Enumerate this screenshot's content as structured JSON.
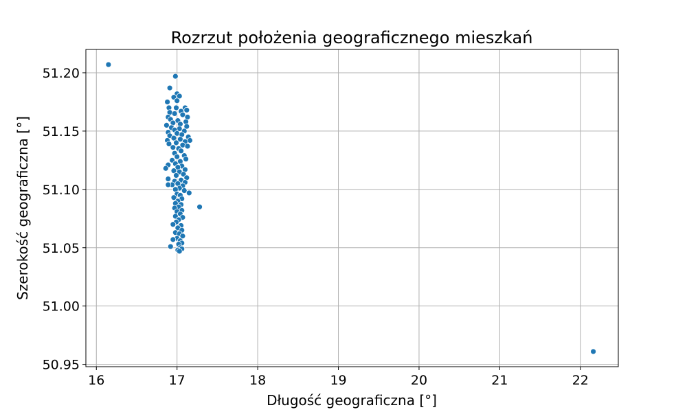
{
  "chart_data": {
    "type": "scatter",
    "title": "Rozrzut położenia geograficznego mieszkań",
    "xlabel": "Długość geograficzna [°]",
    "ylabel": "Szerokość geograficzna [°]",
    "xlim": [
      15.87,
      22.47
    ],
    "ylim": [
      50.948,
      51.22
    ],
    "x_ticks": [
      16,
      17,
      18,
      19,
      20,
      21,
      22
    ],
    "x_tick_labels": [
      "16",
      "17",
      "18",
      "19",
      "20",
      "21",
      "22"
    ],
    "y_ticks": [
      50.95,
      51.0,
      51.05,
      51.1,
      51.15,
      51.2
    ],
    "y_tick_labels": [
      "50.95",
      "51.00",
      "51.05",
      "51.10",
      "51.15",
      "51.20"
    ],
    "grid": true,
    "marker_color": "#1f77b4",
    "points": [
      [
        16.15,
        51.207
      ],
      [
        22.16,
        50.961
      ],
      [
        17.28,
        51.085
      ],
      [
        16.98,
        51.197
      ],
      [
        16.91,
        51.187
      ],
      [
        17.0,
        51.182
      ],
      [
        17.03,
        51.18
      ],
      [
        16.96,
        51.179
      ],
      [
        17.0,
        51.176
      ],
      [
        16.88,
        51.175
      ],
      [
        16.9,
        51.17
      ],
      [
        16.99,
        51.17
      ],
      [
        17.1,
        51.17
      ],
      [
        17.12,
        51.168
      ],
      [
        17.05,
        51.167
      ],
      [
        16.91,
        51.166
      ],
      [
        16.97,
        51.165
      ],
      [
        17.07,
        51.164
      ],
      [
        16.89,
        51.162
      ],
      [
        17.13,
        51.162
      ],
      [
        16.92,
        51.16
      ],
      [
        17.01,
        51.159
      ],
      [
        17.11,
        51.158
      ],
      [
        16.95,
        51.157
      ],
      [
        17.04,
        51.156
      ],
      [
        16.87,
        51.155
      ],
      [
        17.12,
        51.154
      ],
      [
        16.93,
        51.153
      ],
      [
        17.03,
        51.152
      ],
      [
        16.97,
        51.151
      ],
      [
        17.09,
        51.15
      ],
      [
        16.89,
        51.149
      ],
      [
        17.0,
        51.148
      ],
      [
        17.06,
        51.147
      ],
      [
        16.91,
        51.146
      ],
      [
        17.14,
        51.145
      ],
      [
        16.96,
        51.144
      ],
      [
        17.04,
        51.143
      ],
      [
        17.16,
        51.142
      ],
      [
        16.88,
        51.142
      ],
      [
        17.1,
        51.141
      ],
      [
        16.99,
        51.14
      ],
      [
        16.9,
        51.139
      ],
      [
        17.07,
        51.138
      ],
      [
        17.13,
        51.137
      ],
      [
        16.95,
        51.136
      ],
      [
        17.02,
        51.135
      ],
      [
        17.05,
        51.133
      ],
      [
        16.97,
        51.131
      ],
      [
        17.09,
        51.129
      ],
      [
        17.0,
        51.128
      ],
      [
        17.11,
        51.126
      ],
      [
        16.94,
        51.125
      ],
      [
        17.04,
        51.124
      ],
      [
        16.98,
        51.122
      ],
      [
        16.89,
        51.121
      ],
      [
        17.06,
        51.12
      ],
      [
        17.01,
        51.119
      ],
      [
        16.86,
        51.118
      ],
      [
        17.1,
        51.117
      ],
      [
        16.96,
        51.116
      ],
      [
        17.03,
        51.115
      ],
      [
        17.08,
        51.113
      ],
      [
        16.99,
        51.112
      ],
      [
        17.12,
        51.11
      ],
      [
        16.89,
        51.109
      ],
      [
        17.05,
        51.108
      ],
      [
        16.97,
        51.107
      ],
      [
        17.1,
        51.106
      ],
      [
        17.01,
        51.105
      ],
      [
        16.94,
        51.104
      ],
      [
        16.89,
        51.104
      ],
      [
        17.07,
        51.103
      ],
      [
        17.03,
        51.101
      ],
      [
        16.98,
        51.1
      ],
      [
        17.09,
        51.099
      ],
      [
        17.15,
        51.097
      ],
      [
        17.0,
        51.096
      ],
      [
        17.04,
        51.095
      ],
      [
        16.96,
        51.093
      ],
      [
        17.06,
        51.092
      ],
      [
        17.01,
        51.09
      ],
      [
        16.98,
        51.088
      ],
      [
        17.05,
        51.087
      ],
      [
        17.02,
        51.085
      ],
      [
        16.97,
        51.084
      ],
      [
        17.06,
        51.082
      ],
      [
        17.0,
        51.081
      ],
      [
        17.04,
        51.079
      ],
      [
        16.98,
        51.077
      ],
      [
        17.07,
        51.076
      ],
      [
        17.02,
        51.074
      ],
      [
        16.99,
        51.072
      ],
      [
        16.95,
        51.07
      ],
      [
        17.05,
        51.069
      ],
      [
        17.01,
        51.067
      ],
      [
        17.06,
        51.065
      ],
      [
        16.98,
        51.063
      ],
      [
        17.03,
        51.062
      ],
      [
        17.07,
        51.06
      ],
      [
        17.0,
        51.058
      ],
      [
        16.95,
        51.057
      ],
      [
        17.04,
        51.056
      ],
      [
        17.06,
        51.054
      ],
      [
        17.02,
        51.053
      ],
      [
        16.92,
        51.051
      ],
      [
        17.04,
        51.05
      ],
      [
        17.06,
        51.049
      ],
      [
        17.01,
        51.048
      ],
      [
        17.03,
        51.047
      ]
    ]
  }
}
